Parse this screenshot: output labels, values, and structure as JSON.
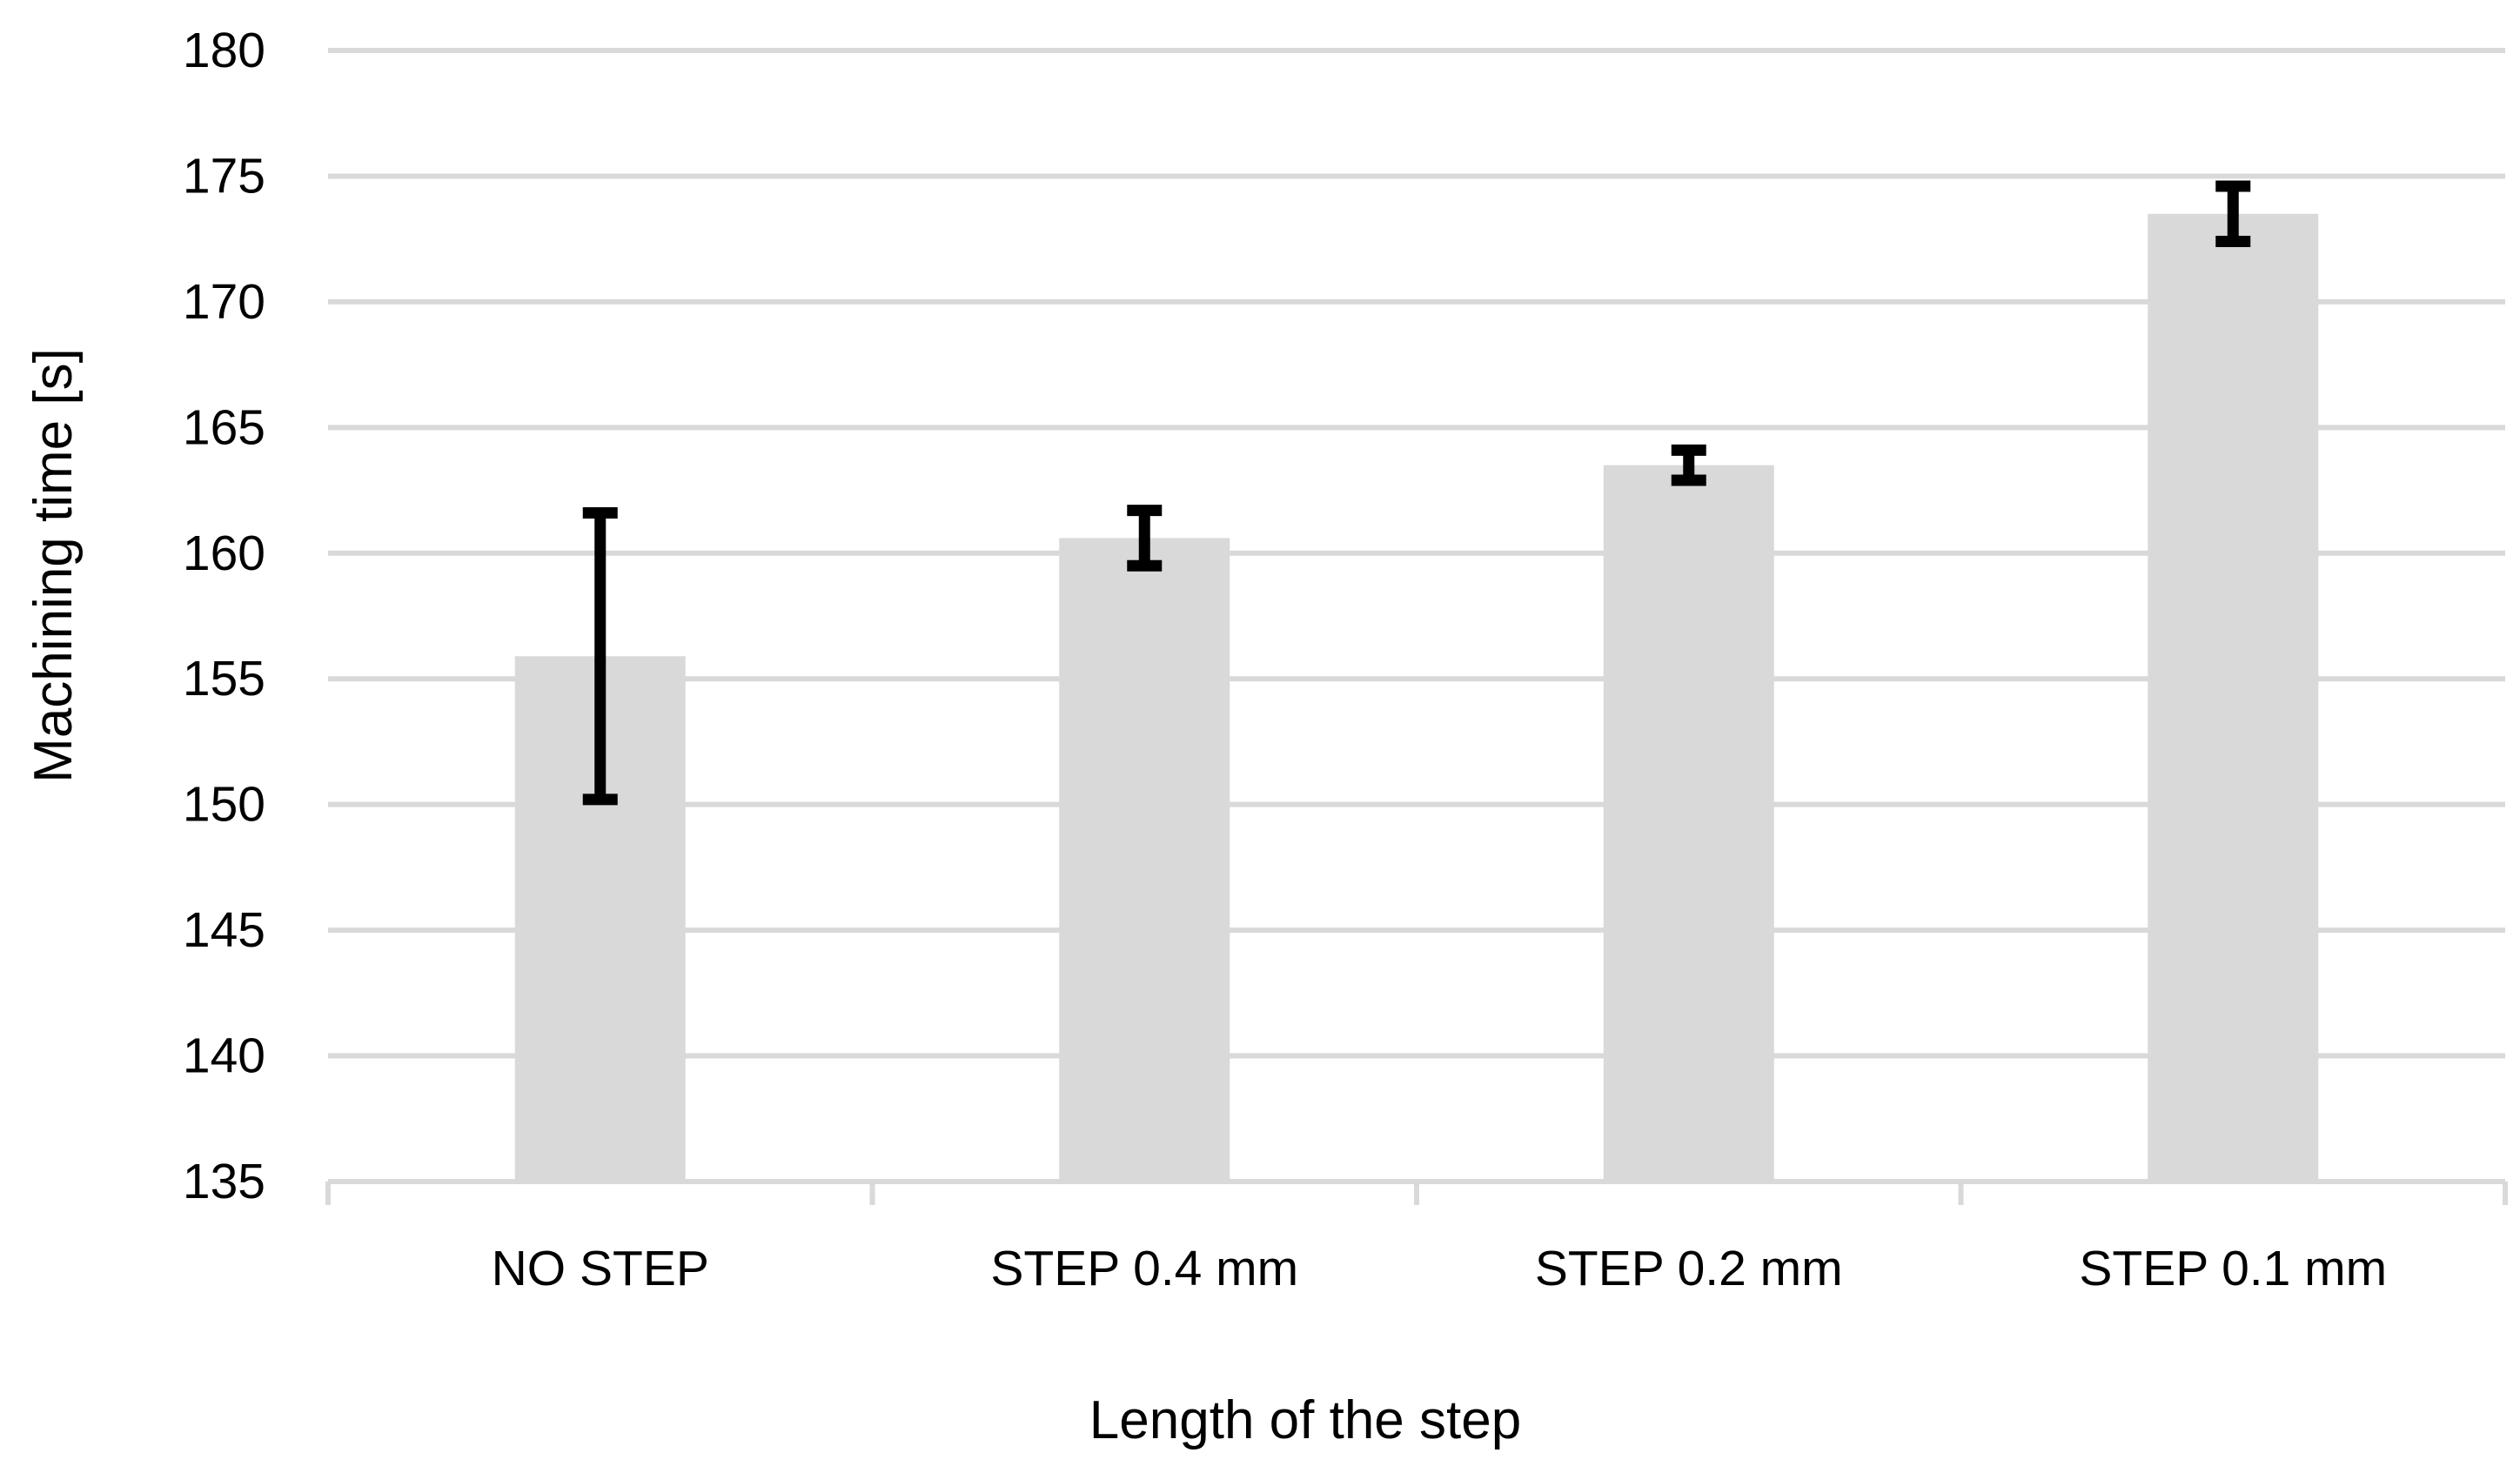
{
  "chart_data": {
    "type": "bar",
    "title": "",
    "xlabel": "Length of the step",
    "ylabel": "Machining time [s]",
    "categories": [
      "NO STEP",
      "STEP 0.4 mm",
      "STEP 0.2 mm",
      "STEP 0.1 mm"
    ],
    "values": [
      155.9,
      160.6,
      163.5,
      173.5
    ],
    "error_upper": [
      161.6,
      161.7,
      164.1,
      174.6
    ],
    "error_lower": [
      150.2,
      159.5,
      162.9,
      172.4
    ],
    "ylim": [
      135,
      180
    ],
    "y_tick_step": 5,
    "y_ticks": [
      "180",
      "175",
      "170",
      "165",
      "160",
      "155",
      "150",
      "145",
      "140",
      "135"
    ],
    "grid": true,
    "legend": "none",
    "colors": {
      "bar_fill": "#d9d9d9",
      "gridline": "#d9d9d9",
      "axis_line": "#d9d9d9",
      "error_bar": "#000000",
      "text": "#000000",
      "background": "#ffffff"
    }
  }
}
